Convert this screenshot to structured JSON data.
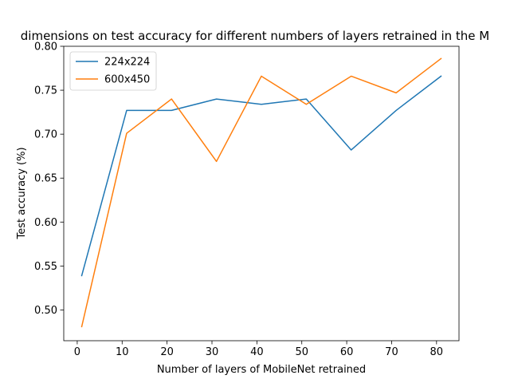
{
  "chart_data": {
    "type": "line",
    "title": "dimensions on test accuracy for different numbers of layers retrained in the M",
    "xlabel": "Number of layers of MobileNet retrained",
    "ylabel": "Test accuracy (%)",
    "x": [
      1,
      11,
      21,
      31,
      41,
      51,
      61,
      71,
      81
    ],
    "xlim": [
      -3.0,
      85.0
    ],
    "ylim": [
      0.465,
      0.8
    ],
    "xticks": [
      0,
      10,
      20,
      30,
      40,
      50,
      60,
      70,
      80
    ],
    "yticks": [
      0.5,
      0.55,
      0.6,
      0.65,
      0.7,
      0.75,
      0.8
    ],
    "xtick_labels": [
      "0",
      "10",
      "20",
      "30",
      "40",
      "50",
      "60",
      "70",
      "80"
    ],
    "ytick_labels": [
      "0.50",
      "0.55",
      "0.60",
      "0.65",
      "0.70",
      "0.75",
      "0.80"
    ],
    "grid": false,
    "legend": "top-left",
    "series": [
      {
        "name": "224x224",
        "color": "#1f77b4",
        "values": [
          0.539,
          0.727,
          0.727,
          0.74,
          0.734,
          0.74,
          0.682,
          0.727,
          0.766
        ]
      },
      {
        "name": "600x450",
        "color": "#ff7f0e",
        "values": [
          0.481,
          0.701,
          0.74,
          0.669,
          0.766,
          0.734,
          0.766,
          0.747,
          0.786
        ]
      }
    ]
  }
}
